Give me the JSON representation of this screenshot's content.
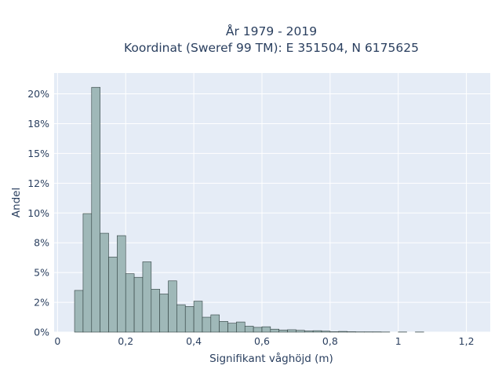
{
  "chart_data": {
    "type": "bar",
    "title": [
      "År 1979 - 2019",
      "Koordinat (Sweref 99 TM): E 351504, N 6175625"
    ],
    "xlabel": "Signifikant våghöjd (m)",
    "ylabel": "Andel",
    "xlim": [
      -0.01,
      1.27
    ],
    "ylim": [
      0,
      0.2175
    ],
    "bin_width": 0.025,
    "x_ticks": [
      {
        "value": 0,
        "label": "0"
      },
      {
        "value": 0.2,
        "label": "0,2"
      },
      {
        "value": 0.4,
        "label": "0,4"
      },
      {
        "value": 0.6,
        "label": "0,6"
      },
      {
        "value": 0.8,
        "label": "0,8"
      },
      {
        "value": 1.0,
        "label": "1"
      },
      {
        "value": 1.2,
        "label": "1,2"
      }
    ],
    "y_ticks": [
      {
        "value": 0,
        "label": "0%"
      },
      {
        "value": 0.025,
        "label": "2%"
      },
      {
        "value": 0.05,
        "label": "5%"
      },
      {
        "value": 0.075,
        "label": "8%"
      },
      {
        "value": 0.1,
        "label": "10%"
      },
      {
        "value": 0.125,
        "label": "12%"
      },
      {
        "value": 0.15,
        "label": "15%"
      },
      {
        "value": 0.175,
        "label": "18%"
      },
      {
        "value": 0.2,
        "label": "20%"
      }
    ],
    "bins": [
      {
        "x0": 0.05,
        "value": 0.035
      },
      {
        "x0": 0.075,
        "value": 0.0995
      },
      {
        "x0": 0.1,
        "value": 0.2055
      },
      {
        "x0": 0.125,
        "value": 0.083
      },
      {
        "x0": 0.15,
        "value": 0.063
      },
      {
        "x0": 0.175,
        "value": 0.081
      },
      {
        "x0": 0.2,
        "value": 0.049
      },
      {
        "x0": 0.225,
        "value": 0.046
      },
      {
        "x0": 0.25,
        "value": 0.059
      },
      {
        "x0": 0.275,
        "value": 0.036
      },
      {
        "x0": 0.3,
        "value": 0.032
      },
      {
        "x0": 0.325,
        "value": 0.043
      },
      {
        "x0": 0.35,
        "value": 0.023
      },
      {
        "x0": 0.375,
        "value": 0.0215
      },
      {
        "x0": 0.4,
        "value": 0.026
      },
      {
        "x0": 0.425,
        "value": 0.0125
      },
      {
        "x0": 0.45,
        "value": 0.0145
      },
      {
        "x0": 0.475,
        "value": 0.009
      },
      {
        "x0": 0.5,
        "value": 0.0075
      },
      {
        "x0": 0.525,
        "value": 0.0085
      },
      {
        "x0": 0.55,
        "value": 0.005
      },
      {
        "x0": 0.575,
        "value": 0.004
      },
      {
        "x0": 0.6,
        "value": 0.0045
      },
      {
        "x0": 0.625,
        "value": 0.0025
      },
      {
        "x0": 0.65,
        "value": 0.0018
      },
      {
        "x0": 0.675,
        "value": 0.002
      },
      {
        "x0": 0.7,
        "value": 0.0015
      },
      {
        "x0": 0.725,
        "value": 0.001
      },
      {
        "x0": 0.75,
        "value": 0.0012
      },
      {
        "x0": 0.775,
        "value": 0.0008
      },
      {
        "x0": 0.8,
        "value": 0.0003
      },
      {
        "x0": 0.825,
        "value": 0.0006
      },
      {
        "x0": 0.85,
        "value": 0.0003
      },
      {
        "x0": 0.875,
        "value": 0.0002
      },
      {
        "x0": 0.9,
        "value": 0.0002
      },
      {
        "x0": 0.925,
        "value": 0.0002
      },
      {
        "x0": 0.95,
        "value": 0.0001
      },
      {
        "x0": 1.0,
        "value": 0.0001
      },
      {
        "x0": 1.05,
        "value": 0.0001
      }
    ],
    "grid": true,
    "colors": {
      "bar_fill": "#9fb8b8",
      "bar_stroke": "#2f3f3f",
      "plot_bg": "#e5ecf6",
      "grid": "#ffffff",
      "text": "#2a3f5f"
    }
  }
}
